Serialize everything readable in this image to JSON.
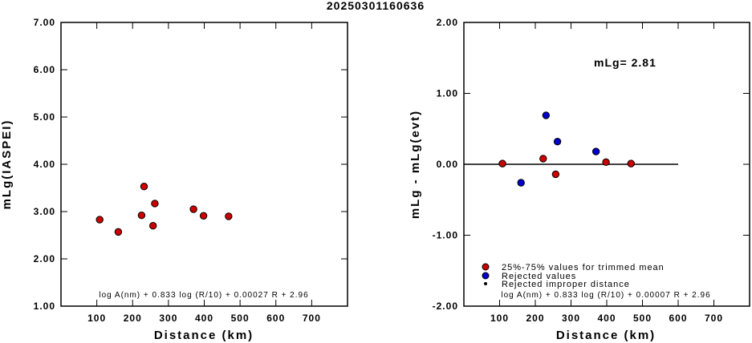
{
  "title": "20250301160636",
  "chart_data": [
    {
      "type": "scatter",
      "xlabel": "Distance (km)",
      "ylabel": "mLg(IASPEI)",
      "xlim": [
        0,
        800
      ],
      "ylim": [
        1.0,
        7.0
      ],
      "xticks": [
        100,
        200,
        300,
        400,
        500,
        600,
        700
      ],
      "xtick_labels": [
        "100",
        "200",
        "300",
        "400",
        "500",
        "600",
        "700"
      ],
      "yticks": [
        1,
        2,
        3,
        4,
        5,
        6,
        7
      ],
      "ytick_labels": [
        "1.00",
        "2.00",
        "3.00",
        "4.00",
        "5.00",
        "6.00",
        "7.00"
      ],
      "formula": "log A(nm) + 0.833 log (R/10) + 0.00027 R + 2.96",
      "grid": false,
      "series": [
        {
          "color": "#cc0000",
          "points": [
            {
              "x": 108,
              "y": 2.83
            },
            {
              "x": 160,
              "y": 2.57
            },
            {
              "x": 225,
              "y": 2.92
            },
            {
              "x": 232,
              "y": 3.53
            },
            {
              "x": 257,
              "y": 2.7
            },
            {
              "x": 262,
              "y": 3.17
            },
            {
              "x": 370,
              "y": 3.05
            },
            {
              "x": 398,
              "y": 2.91
            },
            {
              "x": 468,
              "y": 2.9
            }
          ]
        }
      ]
    },
    {
      "type": "scatter",
      "xlabel": "Distance (km)",
      "ylabel": "mLg - mLg(evt)",
      "xlim": [
        0,
        800
      ],
      "ylim": [
        -2.0,
        2.0
      ],
      "xticks": [
        100,
        200,
        300,
        400,
        500,
        600,
        700
      ],
      "xtick_labels": [
        "100",
        "200",
        "300",
        "400",
        "500",
        "600",
        "700"
      ],
      "yticks": [
        -2,
        -1,
        0,
        1,
        2
      ],
      "ytick_labels": [
        "-2.00",
        "-1.00",
        "0.00",
        "1.00",
        "2.00"
      ],
      "annotation": "mLg= 2.81",
      "formula": "log A(nm) + 0.833 log (R/10) + 0.00007 R + 2.96",
      "reference_line": {
        "y": 0.0,
        "x_from": 0,
        "x_to": 600
      },
      "grid": false,
      "legend_position": "bottom-left",
      "series": [
        {
          "name": "25%-75% values for trimmed mean",
          "color": "#cc0000",
          "points": [
            {
              "x": 108,
              "y": 0.01
            },
            {
              "x": 222,
              "y": 0.08
            },
            {
              "x": 257,
              "y": -0.14
            },
            {
              "x": 398,
              "y": 0.03
            },
            {
              "x": 468,
              "y": 0.01
            }
          ]
        },
        {
          "name": "Rejected values",
          "color": "#0000cc",
          "points": [
            {
              "x": 160,
              "y": -0.26
            },
            {
              "x": 230,
              "y": 0.69
            },
            {
              "x": 262,
              "y": 0.32
            },
            {
              "x": 370,
              "y": 0.18
            }
          ]
        },
        {
          "name": "Rejected improper distance",
          "color": "#000000",
          "points": []
        }
      ]
    }
  ]
}
